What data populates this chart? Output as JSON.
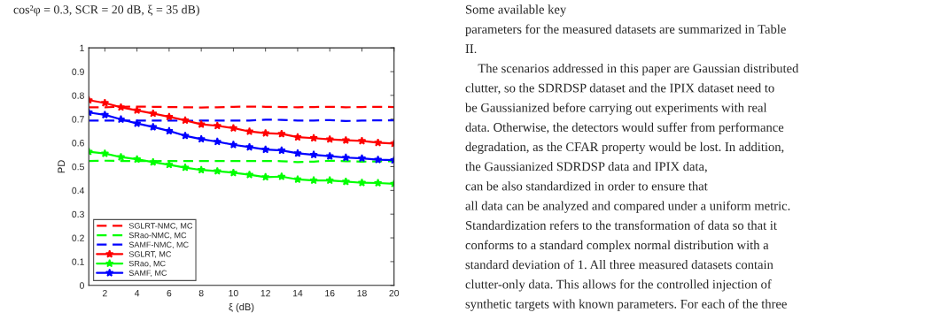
{
  "chart_data": {
    "type": "line",
    "xlabel": "ξ (dB)",
    "ylabel": "PD",
    "x": [
      1,
      2,
      3,
      4,
      5,
      6,
      7,
      8,
      9,
      10,
      11,
      12,
      13,
      14,
      15,
      16,
      17,
      18,
      19,
      20
    ],
    "xlim": [
      1,
      20
    ],
    "xticks": [
      2,
      4,
      6,
      8,
      10,
      12,
      14,
      16,
      18,
      20
    ],
    "ylim": [
      0,
      1
    ],
    "yticks": [
      0,
      0.1,
      0.2,
      0.3,
      0.4,
      0.5,
      0.6,
      0.7,
      0.8,
      0.9,
      1
    ],
    "grid": false,
    "legend": "bottom left",
    "series": [
      {
        "name": "SGLRT-NMC, MC",
        "color": "#ff0000",
        "line_style": "dashed",
        "marker": "none",
        "values": [
          0.75,
          0.75,
          0.752,
          0.753,
          0.752,
          0.751,
          0.75,
          0.749,
          0.75,
          0.752,
          0.753,
          0.752,
          0.751,
          0.75,
          0.751,
          0.752,
          0.75,
          0.751,
          0.752,
          0.751
        ]
      },
      {
        "name": "SRao-NMC, MC",
        "color": "#00ff00",
        "line_style": "dashed",
        "marker": "none",
        "values": [
          0.524,
          0.525,
          0.524,
          0.524,
          0.523,
          0.524,
          0.524,
          0.524,
          0.524,
          0.524,
          0.524,
          0.524,
          0.523,
          0.519,
          0.521,
          0.525,
          0.523,
          0.521,
          0.522,
          0.523
        ]
      },
      {
        "name": "SAMF-NMC, MC",
        "color": "#0000ff",
        "line_style": "dashed",
        "marker": "none",
        "values": [
          0.694,
          0.694,
          0.694,
          0.694,
          0.694,
          0.694,
          0.693,
          0.694,
          0.694,
          0.694,
          0.694,
          0.698,
          0.697,
          0.694,
          0.694,
          0.696,
          0.692,
          0.694,
          0.695,
          0.695
        ]
      },
      {
        "name": "SGLRT, MC",
        "color": "#ff0000",
        "line_style": "solid",
        "marker": "star",
        "values": [
          0.78,
          0.768,
          0.75,
          0.737,
          0.724,
          0.71,
          0.695,
          0.678,
          0.672,
          0.662,
          0.648,
          0.641,
          0.638,
          0.624,
          0.62,
          0.615,
          0.611,
          0.608,
          0.601,
          0.597
        ]
      },
      {
        "name": "SRao, MC",
        "color": "#00ff00",
        "line_style": "solid",
        "marker": "star",
        "values": [
          0.563,
          0.555,
          0.54,
          0.531,
          0.519,
          0.508,
          0.496,
          0.486,
          0.481,
          0.474,
          0.466,
          0.456,
          0.458,
          0.446,
          0.442,
          0.442,
          0.437,
          0.432,
          0.431,
          0.428
        ]
      },
      {
        "name": "SAMF, MC",
        "color": "#0000ff",
        "line_style": "solid",
        "marker": "star",
        "values": [
          0.728,
          0.718,
          0.699,
          0.682,
          0.667,
          0.65,
          0.63,
          0.616,
          0.605,
          0.592,
          0.582,
          0.572,
          0.568,
          0.556,
          0.55,
          0.544,
          0.538,
          0.535,
          0.529,
          0.527
        ]
      }
    ],
    "annotations": [
      "cos²φ = 0.3, SCR = 20 dB, ξ = 35 dB)",
      "Some available key",
      "parameters for the measured datasets are summarized in Table",
      "II.",
      "    The scenarios addressed in this paper are Gaussian distributed",
      "clutter, so the SDRDSP dataset and the IPIX dataset need to",
      "be Gaussianized before carrying out experiments with real",
      "data. Otherwise, the detectors would suffer from performance",
      "degradation, as the CFAR property would be lost. In addition,",
      "the Gaussianized SDRDSP data and IPIX data,",
      "can be also standardized in order to ensure that",
      "all data can be analyzed and compared under a uniform metric.",
      "Standardization refers to the transformation of data so that it",
      "conforms to a standard complex normal distribution with a",
      "standard deviation of 1. All three measured datasets contain",
      "clutter-only data. This allows for the controlled injection of",
      "synthetic targets with known parameters. For each of the three"
    ]
  }
}
